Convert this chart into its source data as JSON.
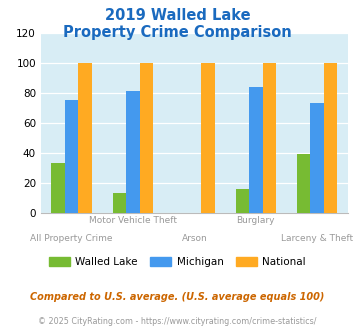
{
  "title_line1": "2019 Walled Lake",
  "title_line2": "Property Crime Comparison",
  "title_color": "#1a6abf",
  "walled_lake": [
    33,
    13,
    0,
    16,
    39
  ],
  "michigan": [
    75,
    81,
    0,
    84,
    73
  ],
  "national": [
    100,
    100,
    100,
    100,
    100
  ],
  "bar_width": 0.22,
  "ylim": [
    0,
    120
  ],
  "yticks": [
    0,
    20,
    40,
    60,
    80,
    100,
    120
  ],
  "color_walled_lake": "#77bb33",
  "color_michigan": "#4499ee",
  "color_national": "#ffaa22",
  "legend_labels": [
    "Walled Lake",
    "Michigan",
    "National"
  ],
  "label_top": [
    "",
    "Motor Vehicle Theft",
    "",
    "Burglary",
    ""
  ],
  "label_bot": [
    "All Property Crime",
    "",
    "Arson",
    "",
    "Larceny & Theft"
  ],
  "footnote1": "Compared to U.S. average. (U.S. average equals 100)",
  "footnote2": "© 2025 CityRating.com - https://www.cityrating.com/crime-statistics/",
  "footnote1_color": "#cc6600",
  "footnote2_color": "#999999",
  "plot_bg_color": "#d8edf5"
}
